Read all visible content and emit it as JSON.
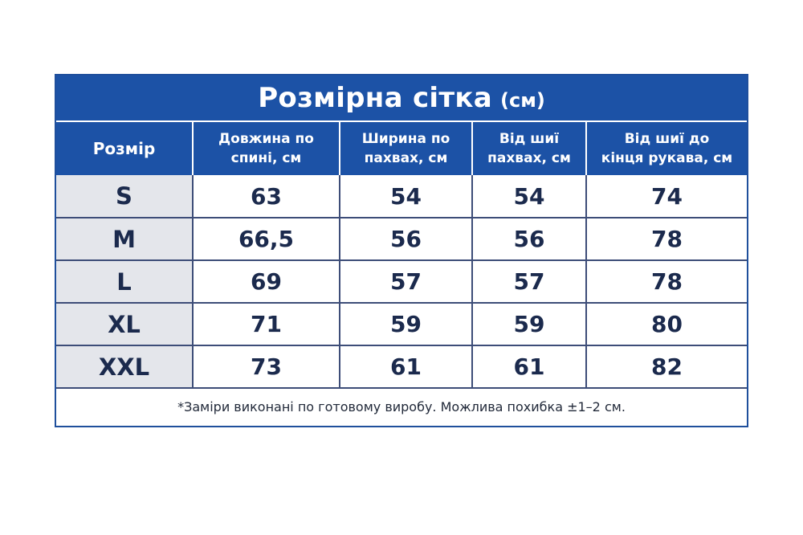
{
  "title": {
    "main": "Розмірна сітка",
    "unit": "(см)"
  },
  "headers": [
    "Розмір",
    "Довжина по спині, см",
    "Ширина по пахвах, см",
    "Від шиї пахвах, см",
    "Від шиї до кінця рукава, см"
  ],
  "header_lines": [
    [
      "Розмір"
    ],
    [
      "Довжина по",
      "спині, см"
    ],
    [
      "Ширина по",
      "пахвах, см"
    ],
    [
      "Від шиї",
      "пахвах, см"
    ],
    [
      "Від шиї до",
      "кінця рукава, см"
    ]
  ],
  "rows": [
    {
      "size": "S",
      "back_length": "63",
      "chest_width": "54",
      "neck_to_armpit": "54",
      "neck_to_sleeve_end": "74"
    },
    {
      "size": "M",
      "back_length": "66,5",
      "chest_width": "56",
      "neck_to_armpit": "56",
      "neck_to_sleeve_end": "78"
    },
    {
      "size": "L",
      "back_length": "69",
      "chest_width": "57",
      "neck_to_armpit": "57",
      "neck_to_sleeve_end": "78"
    },
    {
      "size": "XL",
      "back_length": "71",
      "chest_width": "59",
      "neck_to_armpit": "59",
      "neck_to_sleeve_end": "80"
    },
    {
      "size": "XXL",
      "back_length": "73",
      "chest_width": "61",
      "neck_to_armpit": "61",
      "neck_to_sleeve_end": "82"
    }
  ],
  "footnote": "*Заміри виконані по готовому виробу. Можлива похибка ±1–2 см.",
  "colors": {
    "header_blue": "#1c52a6",
    "size_column_bg": "#e4e6eb",
    "value_text": "#1b2a4d"
  }
}
